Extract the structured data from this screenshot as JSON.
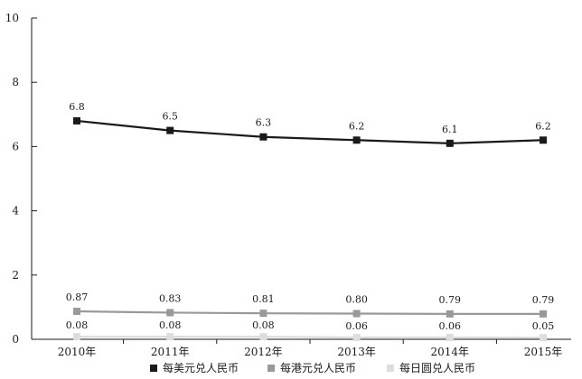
{
  "chart_data": {
    "type": "line",
    "title": "",
    "xlabel": "",
    "ylabel": "",
    "categories": [
      "2010年",
      "2011年",
      "2012年",
      "2013年",
      "2014年",
      "2015年"
    ],
    "ylim": [
      0,
      10
    ],
    "yticks": [
      0,
      2,
      4,
      6,
      8,
      10
    ],
    "grid": false,
    "legend_position": "bottom",
    "series": [
      {
        "name": "每美元兑人民币",
        "values": [
          6.8,
          6.5,
          6.3,
          6.2,
          6.1,
          6.2
        ],
        "labels": [
          "6.8",
          "6.5",
          "6.3",
          "6.2",
          "6.1",
          "6.2"
        ],
        "color": "#1a1a1a"
      },
      {
        "name": "每港元兑人民币",
        "values": [
          0.87,
          0.83,
          0.81,
          0.8,
          0.79,
          0.79
        ],
        "labels": [
          "0.87",
          "0.83",
          "0.81",
          "0.80",
          "0.79",
          "0.79"
        ],
        "color": "#999999"
      },
      {
        "name": "每日圆兑人民币",
        "values": [
          0.08,
          0.08,
          0.08,
          0.06,
          0.06,
          0.05
        ],
        "labels": [
          "0.08",
          "0.08",
          "0.08",
          "0.06",
          "0.06",
          "0.05"
        ],
        "color": "#dddddd"
      }
    ]
  }
}
